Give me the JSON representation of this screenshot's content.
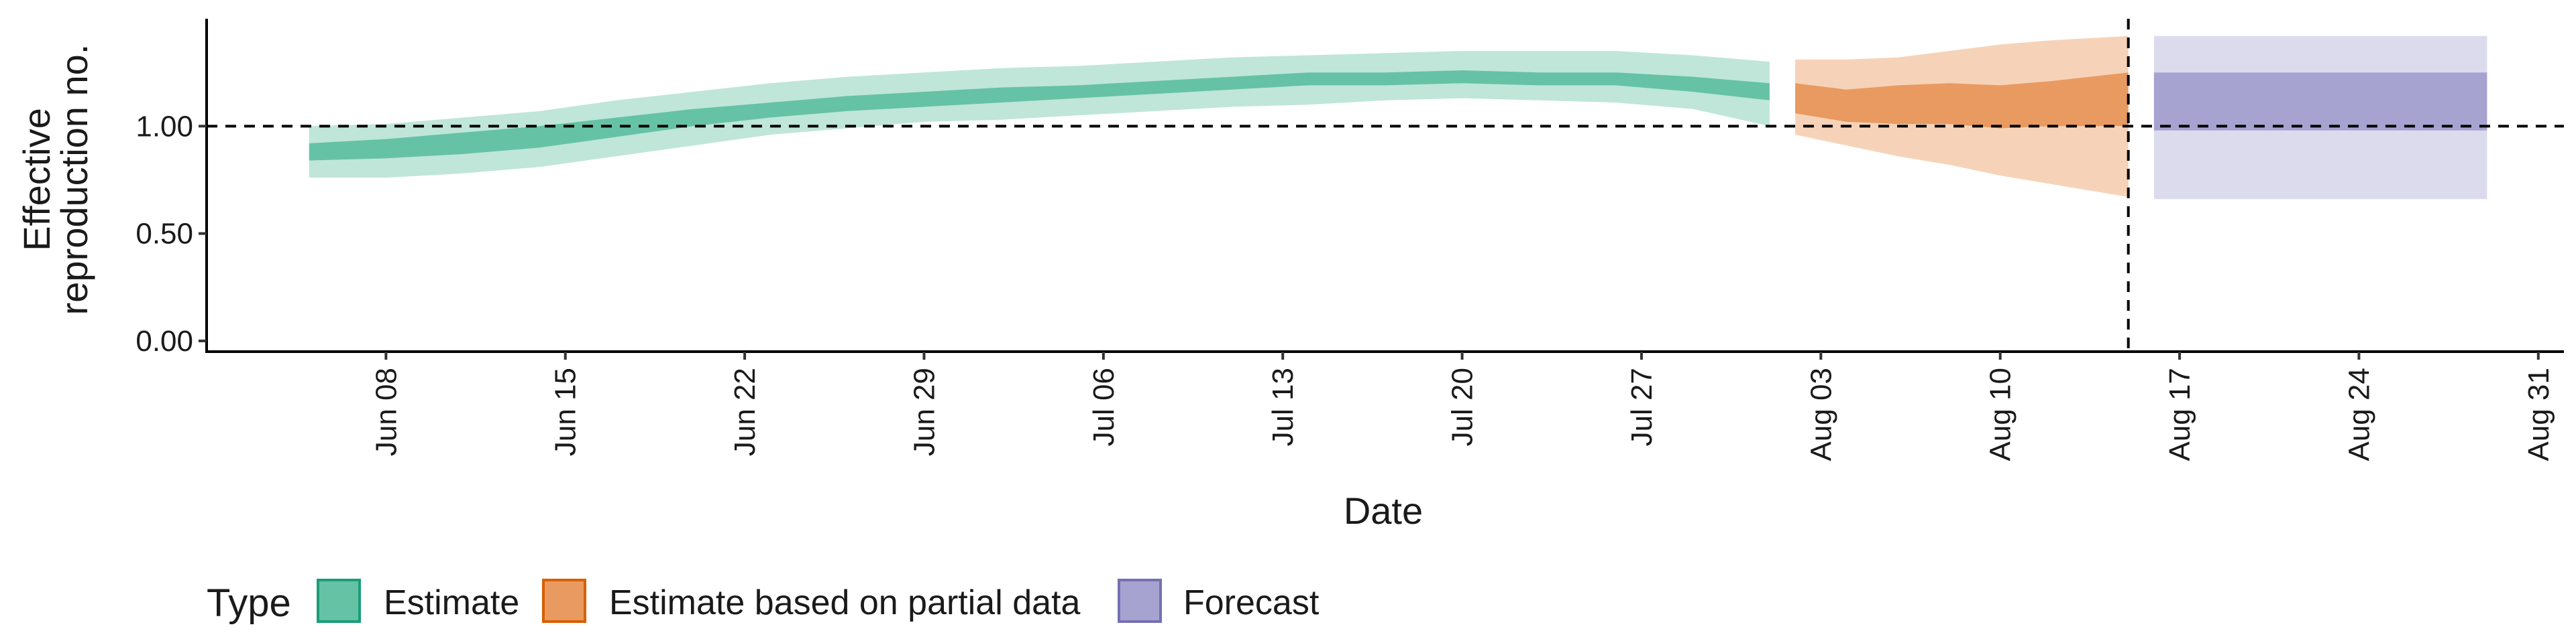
{
  "chart_data": {
    "type": "area",
    "xlabel": "Date",
    "ylabel_lines": [
      "Effective",
      "reproduction no."
    ],
    "ylim": [
      -0.05,
      1.5
    ],
    "xlim": [
      "2020-06-01",
      "2020-09-01"
    ],
    "y_ticks": [
      0.0,
      0.5,
      1.0
    ],
    "y_tick_labels": [
      "0.00",
      "0.50",
      "1.00"
    ],
    "x_ticks": [
      "2020-06-08",
      "2020-06-15",
      "2020-06-22",
      "2020-06-29",
      "2020-07-06",
      "2020-07-13",
      "2020-07-20",
      "2020-07-27",
      "2020-08-03",
      "2020-08-10",
      "2020-08-17",
      "2020-08-24",
      "2020-08-31"
    ],
    "x_tick_labels": [
      "Jun 08",
      "Jun 15",
      "Jun 22",
      "Jun 29",
      "Jul 06",
      "Jul 13",
      "Jul 20",
      "Jul 27",
      "Aug 03",
      "Aug 10",
      "Aug 17",
      "Aug 24",
      "Aug 31"
    ],
    "reference_hline": 1.0,
    "reference_vline": "2020-08-15",
    "grid": false,
    "legend": {
      "title": "Type",
      "position": "bottom",
      "items": [
        "Estimate",
        "Estimate based on partial data",
        "Forecast"
      ]
    },
    "series": [
      {
        "name": "Estimate",
        "color_inner": "#66c2a5",
        "color_outer": "#bfe6d9",
        "stroke": "#1b9e77",
        "dates": [
          "2020-06-05",
          "2020-06-08",
          "2020-06-11",
          "2020-06-14",
          "2020-06-17",
          "2020-06-20",
          "2020-06-23",
          "2020-06-26",
          "2020-06-29",
          "2020-07-02",
          "2020-07-05",
          "2020-07-08",
          "2020-07-11",
          "2020-07-14",
          "2020-07-17",
          "2020-07-20",
          "2020-07-23",
          "2020-07-26",
          "2020-07-29",
          "2020-08-01"
        ],
        "lower90": [
          0.76,
          0.76,
          0.78,
          0.81,
          0.86,
          0.91,
          0.96,
          0.99,
          1.02,
          1.03,
          1.05,
          1.07,
          1.09,
          1.1,
          1.12,
          1.13,
          1.12,
          1.11,
          1.08,
          1.0
        ],
        "lower50": [
          0.84,
          0.85,
          0.87,
          0.9,
          0.95,
          1.0,
          1.04,
          1.07,
          1.09,
          1.11,
          1.13,
          1.15,
          1.17,
          1.19,
          1.19,
          1.2,
          1.19,
          1.19,
          1.16,
          1.12
        ],
        "upper50": [
          0.92,
          0.94,
          0.97,
          1.0,
          1.04,
          1.08,
          1.11,
          1.14,
          1.16,
          1.18,
          1.19,
          1.21,
          1.23,
          1.25,
          1.25,
          1.26,
          1.25,
          1.25,
          1.23,
          1.2
        ],
        "upper90": [
          1.0,
          1.01,
          1.04,
          1.07,
          1.12,
          1.16,
          1.2,
          1.23,
          1.25,
          1.27,
          1.28,
          1.3,
          1.32,
          1.33,
          1.34,
          1.35,
          1.35,
          1.35,
          1.33,
          1.3
        ]
      },
      {
        "name": "Estimate based on partial data",
        "color_inner": "#e99a60",
        "color_outer": "#f6d3b8",
        "stroke": "#d95f02",
        "dates": [
          "2020-08-02",
          "2020-08-04",
          "2020-08-06",
          "2020-08-08",
          "2020-08-10",
          "2020-08-12",
          "2020-08-15"
        ],
        "lower90": [
          0.96,
          0.91,
          0.86,
          0.82,
          0.77,
          0.73,
          0.67
        ],
        "lower50": [
          1.06,
          1.02,
          1.01,
          1.01,
          0.99,
          1.0,
          1.0
        ],
        "upper50": [
          1.2,
          1.17,
          1.19,
          1.2,
          1.19,
          1.21,
          1.25
        ],
        "upper90": [
          1.31,
          1.31,
          1.32,
          1.35,
          1.38,
          1.4,
          1.42
        ]
      },
      {
        "name": "Forecast",
        "color_inner": "#a6a3d1",
        "color_outer": "#dcdbee",
        "stroke": "#7570b3",
        "dates": [
          "2020-08-16",
          "2020-08-29"
        ],
        "lower90": [
          0.66,
          0.66
        ],
        "lower50": [
          0.98,
          0.98
        ],
        "upper50": [
          1.25,
          1.25
        ],
        "upper90": [
          1.42,
          1.42
        ]
      }
    ]
  }
}
